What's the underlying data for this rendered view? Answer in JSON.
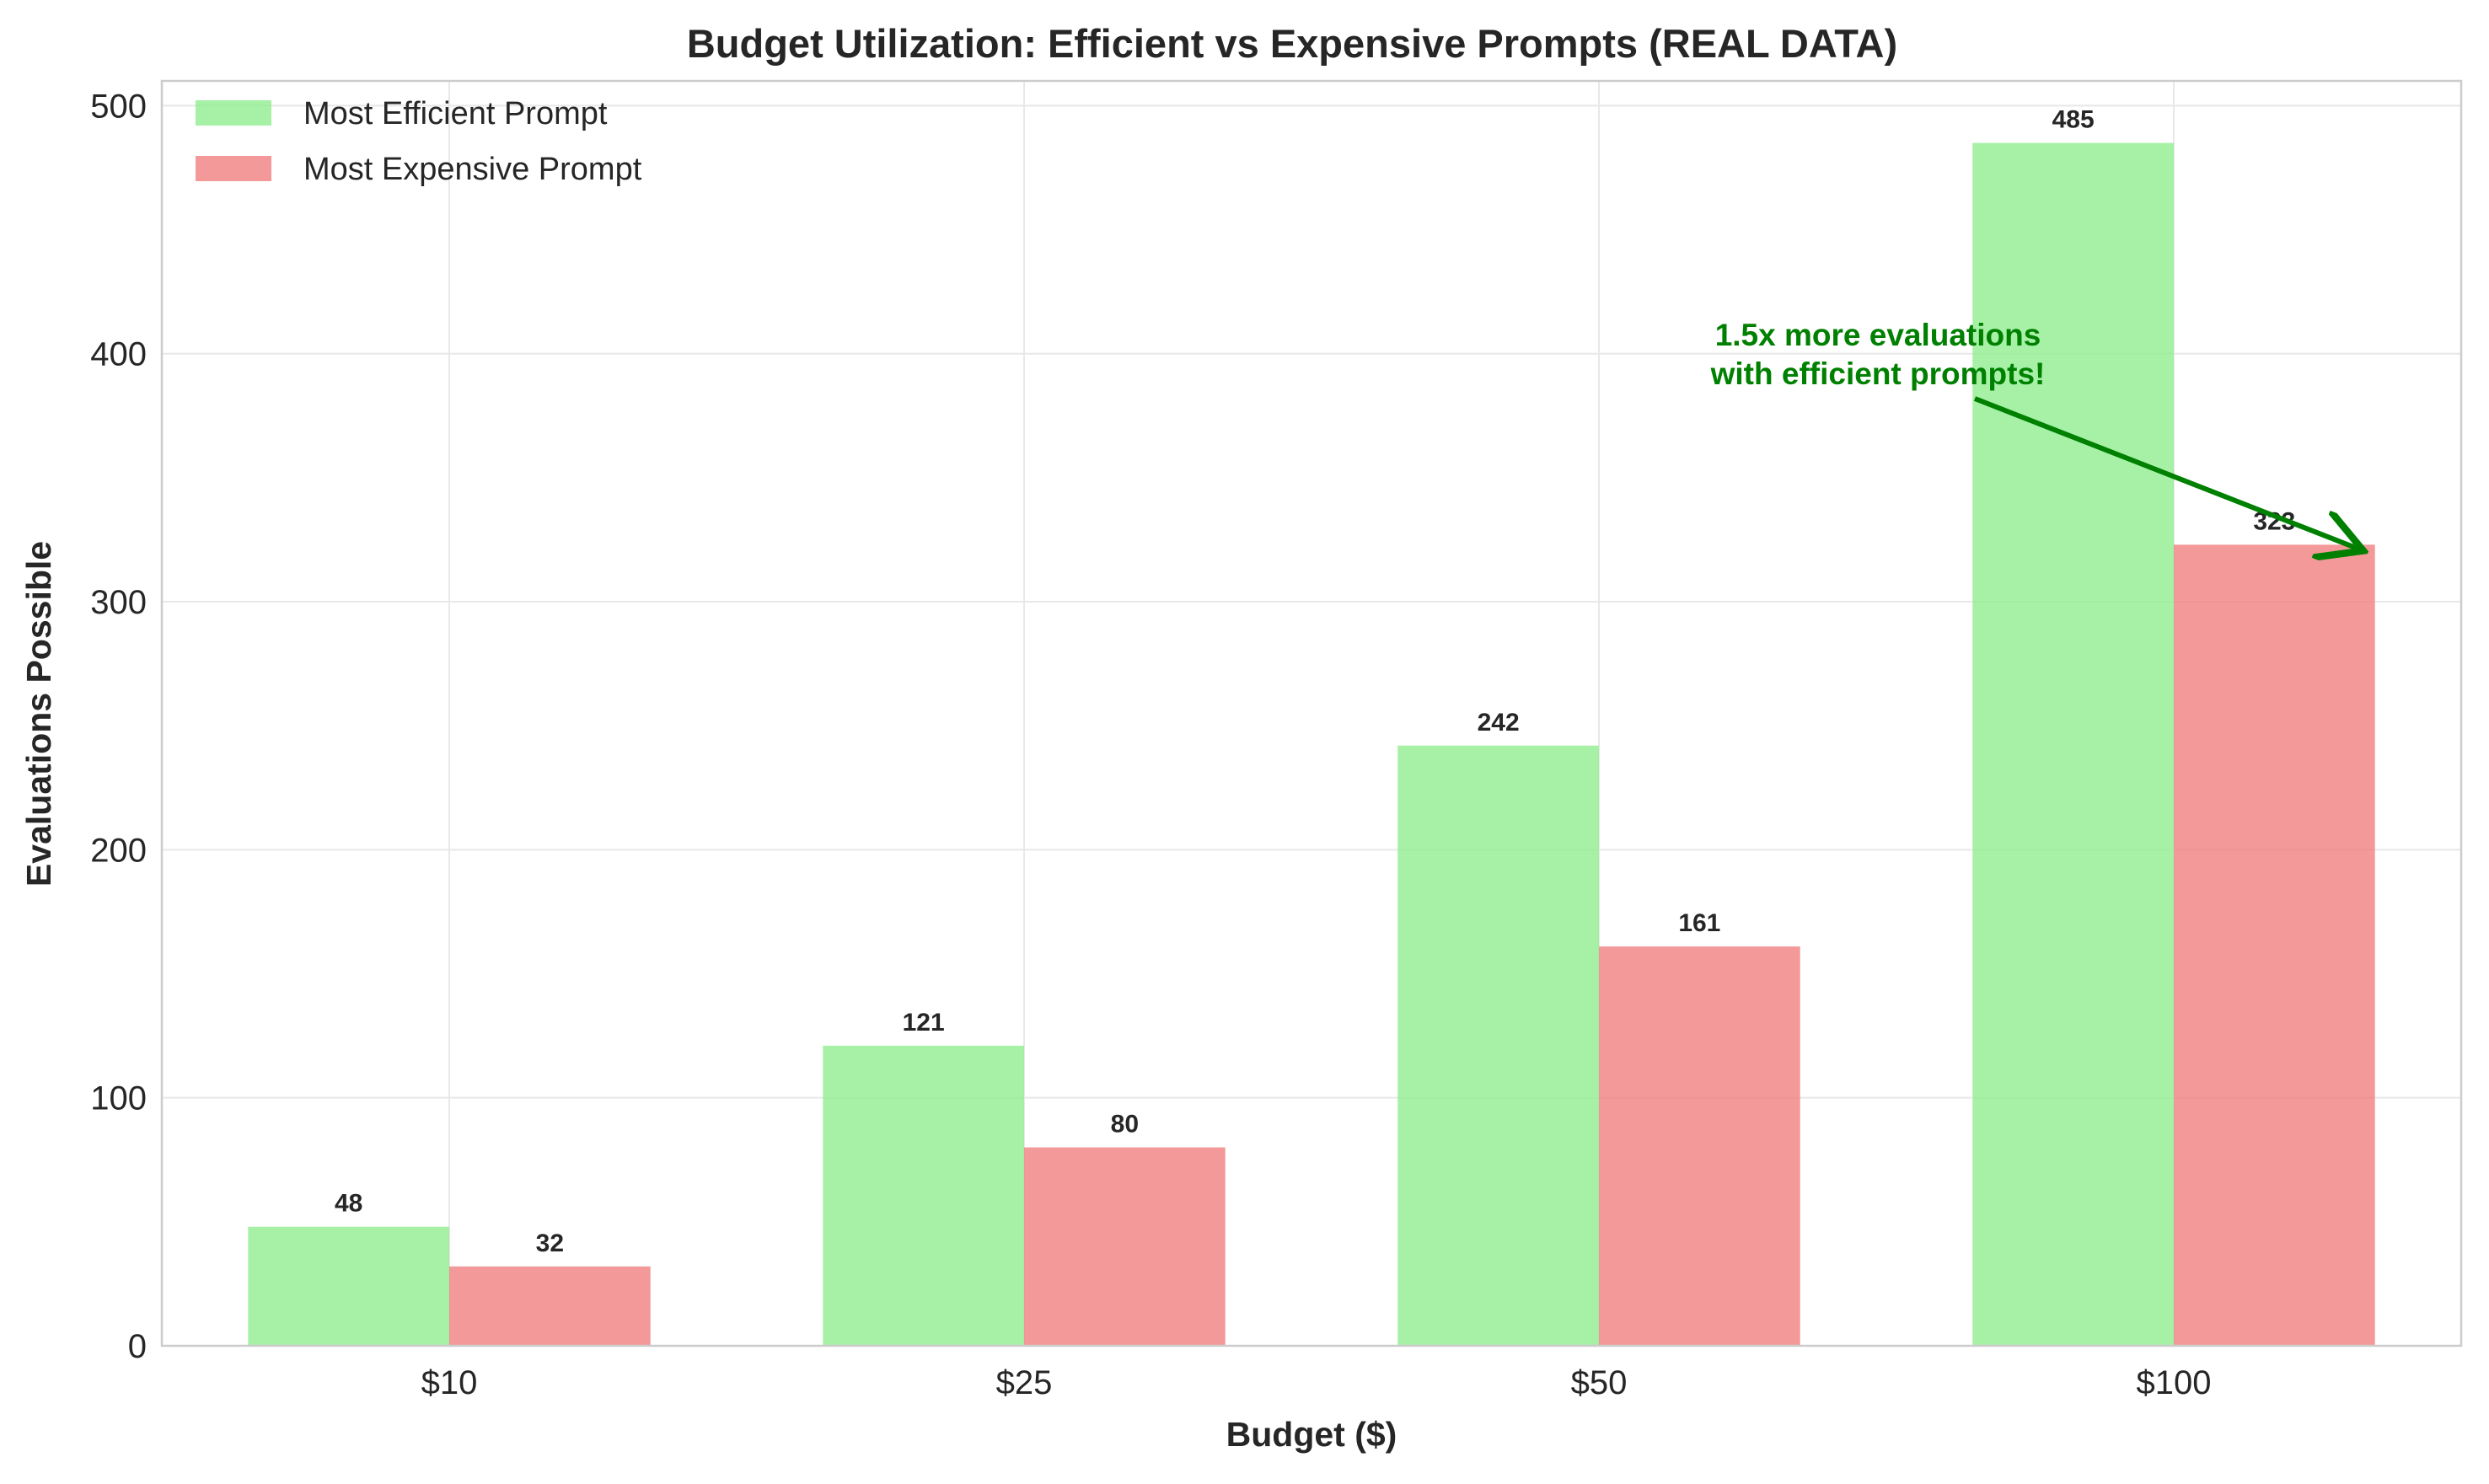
{
  "chart_data": {
    "type": "bar",
    "title": "Budget Utilization: Efficient vs Expensive Prompts (REAL DATA)",
    "xlabel": "Budget ($)",
    "ylabel": "Evaluations Possible",
    "categories": [
      "$10",
      "$25",
      "$50",
      "$100"
    ],
    "series": [
      {
        "name": "Most Efficient Prompt",
        "values": [
          48,
          121,
          242,
          485
        ],
        "color": "#90ee90"
      },
      {
        "name": "Most Expensive Prompt",
        "values": [
          32,
          80,
          161,
          323
        ],
        "color": "#f08080"
      }
    ],
    "ylim": [
      0,
      510
    ],
    "yticks": [
      0,
      100,
      200,
      300,
      400,
      500
    ],
    "grid": true,
    "legend_position": "top-left",
    "annotation": {
      "lines": [
        "1.5x more evaluations",
        "with efficient prompts!"
      ],
      "color": "#008000",
      "points_to": {
        "category": "$100",
        "series": "Most Expensive Prompt",
        "value": 323
      }
    }
  }
}
